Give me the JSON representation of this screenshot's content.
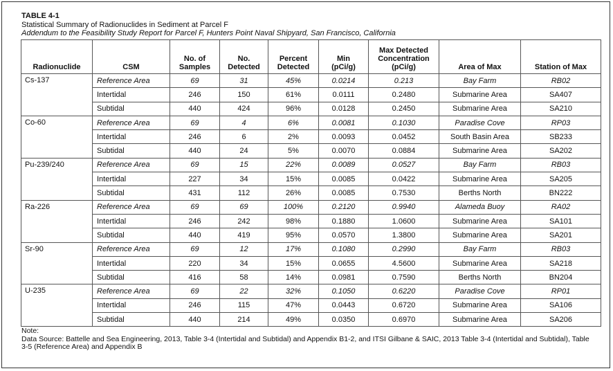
{
  "header": {
    "label": "TABLE 4-1",
    "title": "Statistical Summary of Radionuclides in Sediment at Parcel F",
    "subtitle": "Addendum to the Feasibility Study Report for Parcel F, Hunters Point Naval Shipyard, San Francisco, California"
  },
  "table": {
    "columns": [
      "Radionuclide",
      "CSM",
      "No. of\nSamples",
      "No.\nDetected",
      "Percent\nDetected",
      "Min\n(pCi/g)",
      "Max Detected\nConcentration\n(pCi/g)",
      "Area of Max",
      "Station of Max"
    ],
    "groups": [
      {
        "name": "Cs-137",
        "rows": [
          [
            "Reference Area",
            "69",
            "31",
            "45%",
            "0.0214",
            "0.213",
            "Bay Farm",
            "RB02"
          ],
          [
            "Intertidal",
            "246",
            "150",
            "61%",
            "0.0111",
            "0.2480",
            "Submarine Area",
            "SA407"
          ],
          [
            "Subtidal",
            "440",
            "424",
            "96%",
            "0.0128",
            "0.2450",
            "Submarine Area",
            "SA210"
          ]
        ]
      },
      {
        "name": "Co-60",
        "rows": [
          [
            "Reference Area",
            "69",
            "4",
            "6%",
            "0.0081",
            "0.1030",
            "Paradise Cove",
            "RP03"
          ],
          [
            "Intertidal",
            "246",
            "6",
            "2%",
            "0.0093",
            "0.0452",
            "South Basin Area",
            "SB233"
          ],
          [
            "Subtidal",
            "440",
            "24",
            "5%",
            "0.0070",
            "0.0884",
            "Submarine Area",
            "SA202"
          ]
        ]
      },
      {
        "name": "Pu-239/240",
        "rows": [
          [
            "Reference Area",
            "69",
            "15",
            "22%",
            "0.0089",
            "0.0527",
            "Bay Farm",
            "RB03"
          ],
          [
            "Intertidal",
            "227",
            "34",
            "15%",
            "0.0085",
            "0.0422",
            "Submarine Area",
            "SA205"
          ],
          [
            "Subtidal",
            "431",
            "112",
            "26%",
            "0.0085",
            "0.7530",
            "Berths North",
            "BN222"
          ]
        ]
      },
      {
        "name": "Ra-226",
        "rows": [
          [
            "Reference Area",
            "69",
            "69",
            "100%",
            "0.2120",
            "0.9940",
            "Alameda Buoy",
            "RA02"
          ],
          [
            "Intertidal",
            "246",
            "242",
            "98%",
            "0.1880",
            "1.0600",
            "Submarine Area",
            "SA101"
          ],
          [
            "Subtidal",
            "440",
            "419",
            "95%",
            "0.0570",
            "1.3800",
            "Submarine Area",
            "SA201"
          ]
        ]
      },
      {
        "name": "Sr-90",
        "rows": [
          [
            "Reference Area",
            "69",
            "12",
            "17%",
            "0.1080",
            "0.2990",
            "Bay Farm",
            "RB03"
          ],
          [
            "Intertidal",
            "220",
            "34",
            "15%",
            "0.0655",
            "4.5600",
            "Submarine Area",
            "SA218"
          ],
          [
            "Subtidal",
            "416",
            "58",
            "14%",
            "0.0981",
            "0.7590",
            "Berths North",
            "BN204"
          ]
        ]
      },
      {
        "name": "U-235",
        "rows": [
          [
            "Reference Area",
            "69",
            "22",
            "32%",
            "0.1050",
            "0.6220",
            "Paradise Cove",
            "RP01"
          ],
          [
            "Intertidal",
            "246",
            "115",
            "47%",
            "0.0443",
            "0.6720",
            "Submarine Area",
            "SA106"
          ],
          [
            "Subtidal",
            "440",
            "214",
            "49%",
            "0.0350",
            "0.6970",
            "Submarine Area",
            "SA206"
          ]
        ]
      }
    ]
  },
  "notes": {
    "label": "Note:",
    "source": "Data Source: Battelle and Sea Engineering, 2013, Table 3-4 (Intertidal and Subtidal) and Appendix B1-2, and ITSI Gilbane & SAIC, 2013 Table 3-4 (Intertidal and Subtidal), Table 3-5 (Reference Area) and Appendix B"
  }
}
